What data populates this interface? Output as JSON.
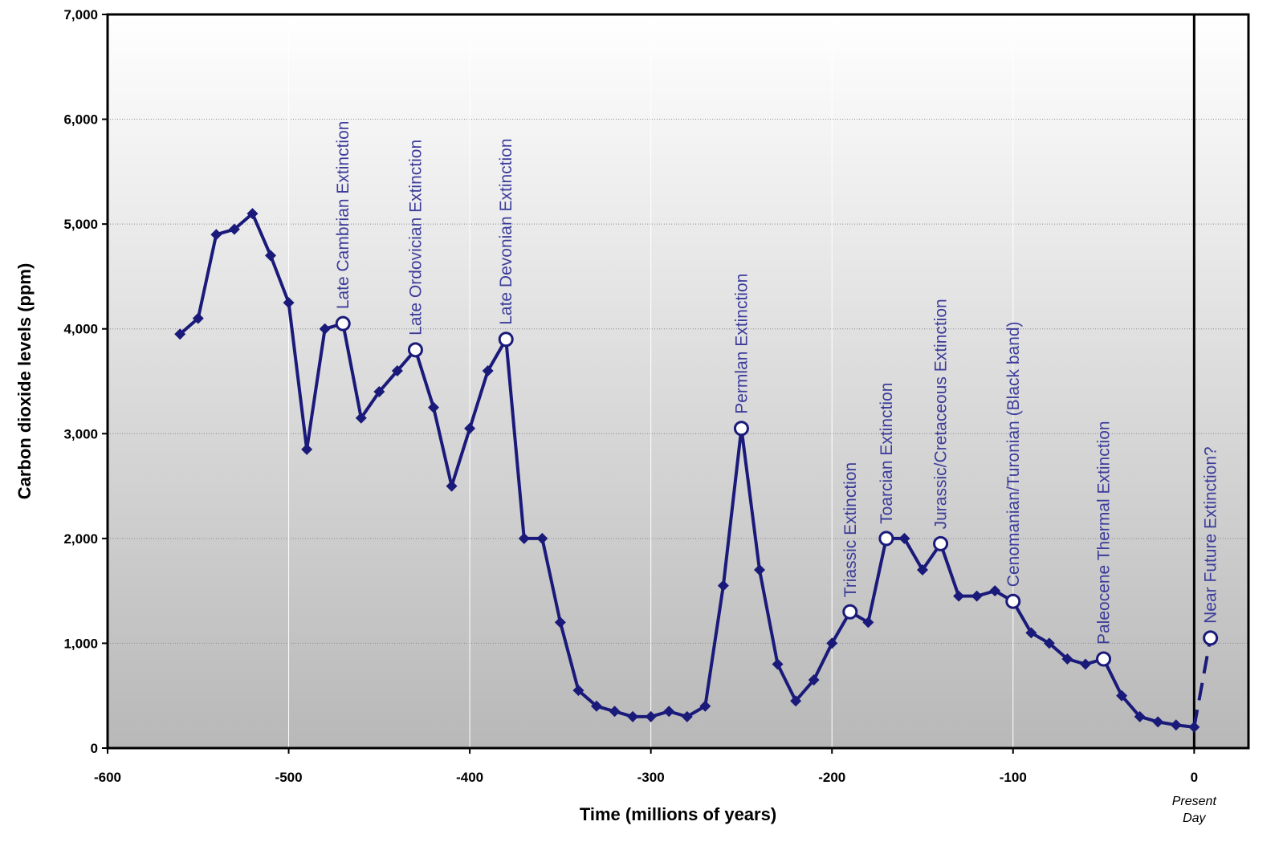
{
  "chart_data": {
    "type": "line",
    "xlabel": "Time (millions of years)",
    "ylabel": "Carbon dioxide levels (ppm)",
    "xlim": [
      -600,
      30
    ],
    "ylim": [
      0,
      7000
    ],
    "x_ticks": [
      -600,
      -500,
      -400,
      -300,
      -200,
      -100,
      0
    ],
    "x_tick_labels": [
      "-600",
      "-500",
      "-400",
      "-300",
      "-200",
      "-100",
      "0"
    ],
    "y_ticks": [
      0,
      1000,
      2000,
      3000,
      4000,
      5000,
      6000,
      7000
    ],
    "y_tick_labels": [
      "0",
      "1,000",
      "2,000",
      "3,000",
      "4,000",
      "5,000",
      "6,000",
      "7,000"
    ],
    "grid": true,
    "vertical_gridlines": [
      -500,
      -400,
      -300,
      -200,
      -100
    ],
    "present_day_line": 0,
    "present_day_label": [
      "Present",
      "Day"
    ],
    "series": [
      {
        "x": [
          -560,
          -550,
          -540,
          -530,
          -520,
          -510,
          -500,
          -490,
          -480,
          -470,
          -460,
          -450,
          -440,
          -430,
          -420,
          -410,
          -400,
          -390,
          -380,
          -370,
          -360,
          -350,
          -340,
          -330,
          -320,
          -310,
          -300,
          -290,
          -280,
          -270,
          -260,
          -250,
          -240,
          -230,
          -220,
          -210,
          -200,
          -190,
          -180,
          -170,
          -160,
          -150,
          -140,
          -130,
          -120,
          -110,
          -100,
          -90,
          -80,
          -70,
          -60,
          -50,
          -40,
          -30,
          -20,
          -10,
          0
        ],
        "y": [
          3950,
          4100,
          4900,
          4950,
          5100,
          4700,
          4250,
          2850,
          4000,
          4050,
          3150,
          3400,
          3600,
          3800,
          3250,
          2500,
          3050,
          3600,
          3900,
          2000,
          2000,
          1200,
          550,
          400,
          350,
          300,
          300,
          350,
          300,
          400,
          1550,
          3050,
          1700,
          800,
          450,
          650,
          1000,
          1300,
          1200,
          2000,
          2000,
          1700,
          1950,
          1450,
          1450,
          1500,
          1400,
          1100,
          1000,
          850,
          800,
          850,
          500,
          300,
          250,
          220,
          200
        ]
      }
    ],
    "projection": {
      "x": [
        0,
        9
      ],
      "y": [
        200,
        1050
      ]
    },
    "events": [
      {
        "label": "Late Cambrian Extinction",
        "x": -470,
        "y": 4050
      },
      {
        "label": "Late Ordovician Extinction",
        "x": -430,
        "y": 3800
      },
      {
        "label": "Late Devonian Extinction",
        "x": -380,
        "y": 3900
      },
      {
        "label": "Permlan Extinction",
        "x": -250,
        "y": 3050
      },
      {
        "label": "Triassic Extinction",
        "x": -190,
        "y": 1300
      },
      {
        "label": "Toarcian Extinction",
        "x": -170,
        "y": 2000
      },
      {
        "label": "Jurassic/Cretaceous Extinction",
        "x": -140,
        "y": 1950
      },
      {
        "label": "Cenomanian/Turonian (Black band)",
        "x": -100,
        "y": 1400
      },
      {
        "label": "Paleocene Thermal Extinction",
        "x": -50,
        "y": 850
      },
      {
        "label": "Near Future Extinction?",
        "x": 9,
        "y": 1050
      }
    ],
    "colors": {
      "line": "#1a1a7a",
      "annotation": "#3b3b9a",
      "background_top": "#ffffff",
      "background_bottom": "#b8b8b8",
      "grid": "#ffffff",
      "frame": "#000000"
    }
  }
}
